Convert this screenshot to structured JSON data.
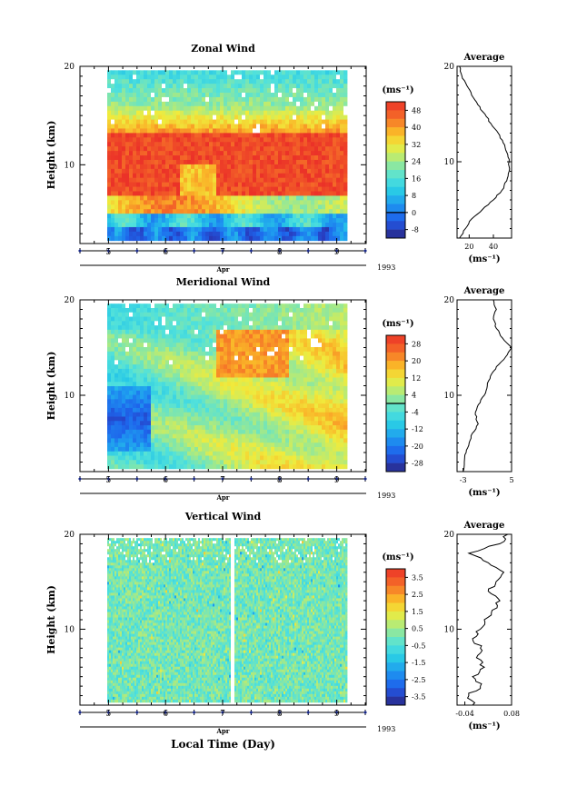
{
  "chart_data": [
    {
      "type": "heatmap",
      "title": "Zonal Wind",
      "ylabel": "Height (km)",
      "ylim": [
        2,
        20
      ],
      "yticks": [
        "10",
        "20"
      ],
      "x_ticks": [
        "5",
        "6",
        "7",
        "8",
        "9"
      ],
      "x_month_label": "Apr",
      "x_year_label": "1993",
      "colorbar": {
        "unit": "(ms⁻¹)",
        "labels": [
          "48",
          "40",
          "32",
          "24",
          "16",
          "8",
          "0",
          "-8"
        ],
        "range": [
          -12,
          52
        ],
        "zero_contour": 0
      },
      "profile": {
        "title": "Average",
        "xlim": [
          10,
          55
        ],
        "xticks": [
          "20",
          "40"
        ],
        "xlabel": "(ms⁻¹)",
        "height_km": [
          2,
          3,
          4,
          5,
          6,
          7,
          8,
          9,
          10,
          11,
          12,
          13,
          14,
          15,
          16,
          17,
          18,
          19,
          20
        ],
        "values": [
          12,
          17,
          22,
          31,
          40,
          47,
          51,
          53,
          53,
          51,
          48,
          44,
          38,
          33,
          27,
          22,
          18,
          14,
          12
        ]
      }
    },
    {
      "type": "heatmap",
      "title": "Meridional Wind",
      "ylabel": "Height (km)",
      "ylim": [
        2,
        20
      ],
      "yticks": [
        "10",
        "20"
      ],
      "x_ticks": [
        "5",
        "6",
        "7",
        "8",
        "9"
      ],
      "x_month_label": "Apr",
      "x_year_label": "1993",
      "colorbar": {
        "unit": "(ms⁻¹)",
        "labels": [
          "28",
          "20",
          "12",
          "4",
          "-4",
          "-12",
          "-20",
          "-28"
        ],
        "range": [
          -32,
          32
        ],
        "zero_contour": 0
      },
      "profile": {
        "title": "Average",
        "xlim": [
          -4,
          5
        ],
        "xticks": [
          "-3",
          "5"
        ],
        "xlabel": "(ms⁻¹)",
        "height_km": [
          2,
          3,
          4,
          5,
          6,
          7,
          8,
          9,
          10,
          11,
          12,
          13,
          14,
          15,
          16,
          17,
          18,
          19,
          20
        ],
        "values": [
          -3,
          -2.8,
          -2.5,
          -2,
          -1.5,
          -0.5,
          -1,
          -0.5,
          0.5,
          1,
          1.5,
          2.5,
          4,
          5,
          3.5,
          2.5,
          2,
          2.5,
          2
        ]
      }
    },
    {
      "type": "heatmap",
      "title": "Vertical Wind",
      "ylabel": "Height (km)",
      "ylim": [
        2,
        20
      ],
      "yticks": [
        "10",
        "20"
      ],
      "x_ticks": [
        "5",
        "6",
        "7",
        "8",
        "9"
      ],
      "x_month_label": "Apr",
      "x_year_label": "1993",
      "xlabel": "Local Time (Day)",
      "colorbar": {
        "unit": "(ms⁻¹)",
        "labels": [
          "3.5",
          "2.5",
          "1.5",
          "0.5",
          "-0.5",
          "-1.5",
          "-2.5",
          "-3.5"
        ],
        "range": [
          -4,
          4
        ]
      },
      "profile": {
        "title": "Average",
        "xlim": [
          -0.06,
          0.08
        ],
        "xticks": [
          "-0.04",
          "0.08"
        ],
        "xlabel": "(ms⁻¹)",
        "height_km": [
          2,
          3,
          4,
          5,
          6,
          7,
          8,
          9,
          10,
          11,
          12,
          13,
          14,
          15,
          16,
          17,
          18,
          19,
          20
        ],
        "values": [
          -0.02,
          -0.03,
          0.0,
          -0.02,
          0.01,
          -0.01,
          0.0,
          -0.02,
          0.0,
          0.01,
          0.03,
          0.05,
          0.02,
          0.04,
          0.06,
          0.02,
          -0.03,
          0.05,
          0.07
        ]
      }
    }
  ]
}
